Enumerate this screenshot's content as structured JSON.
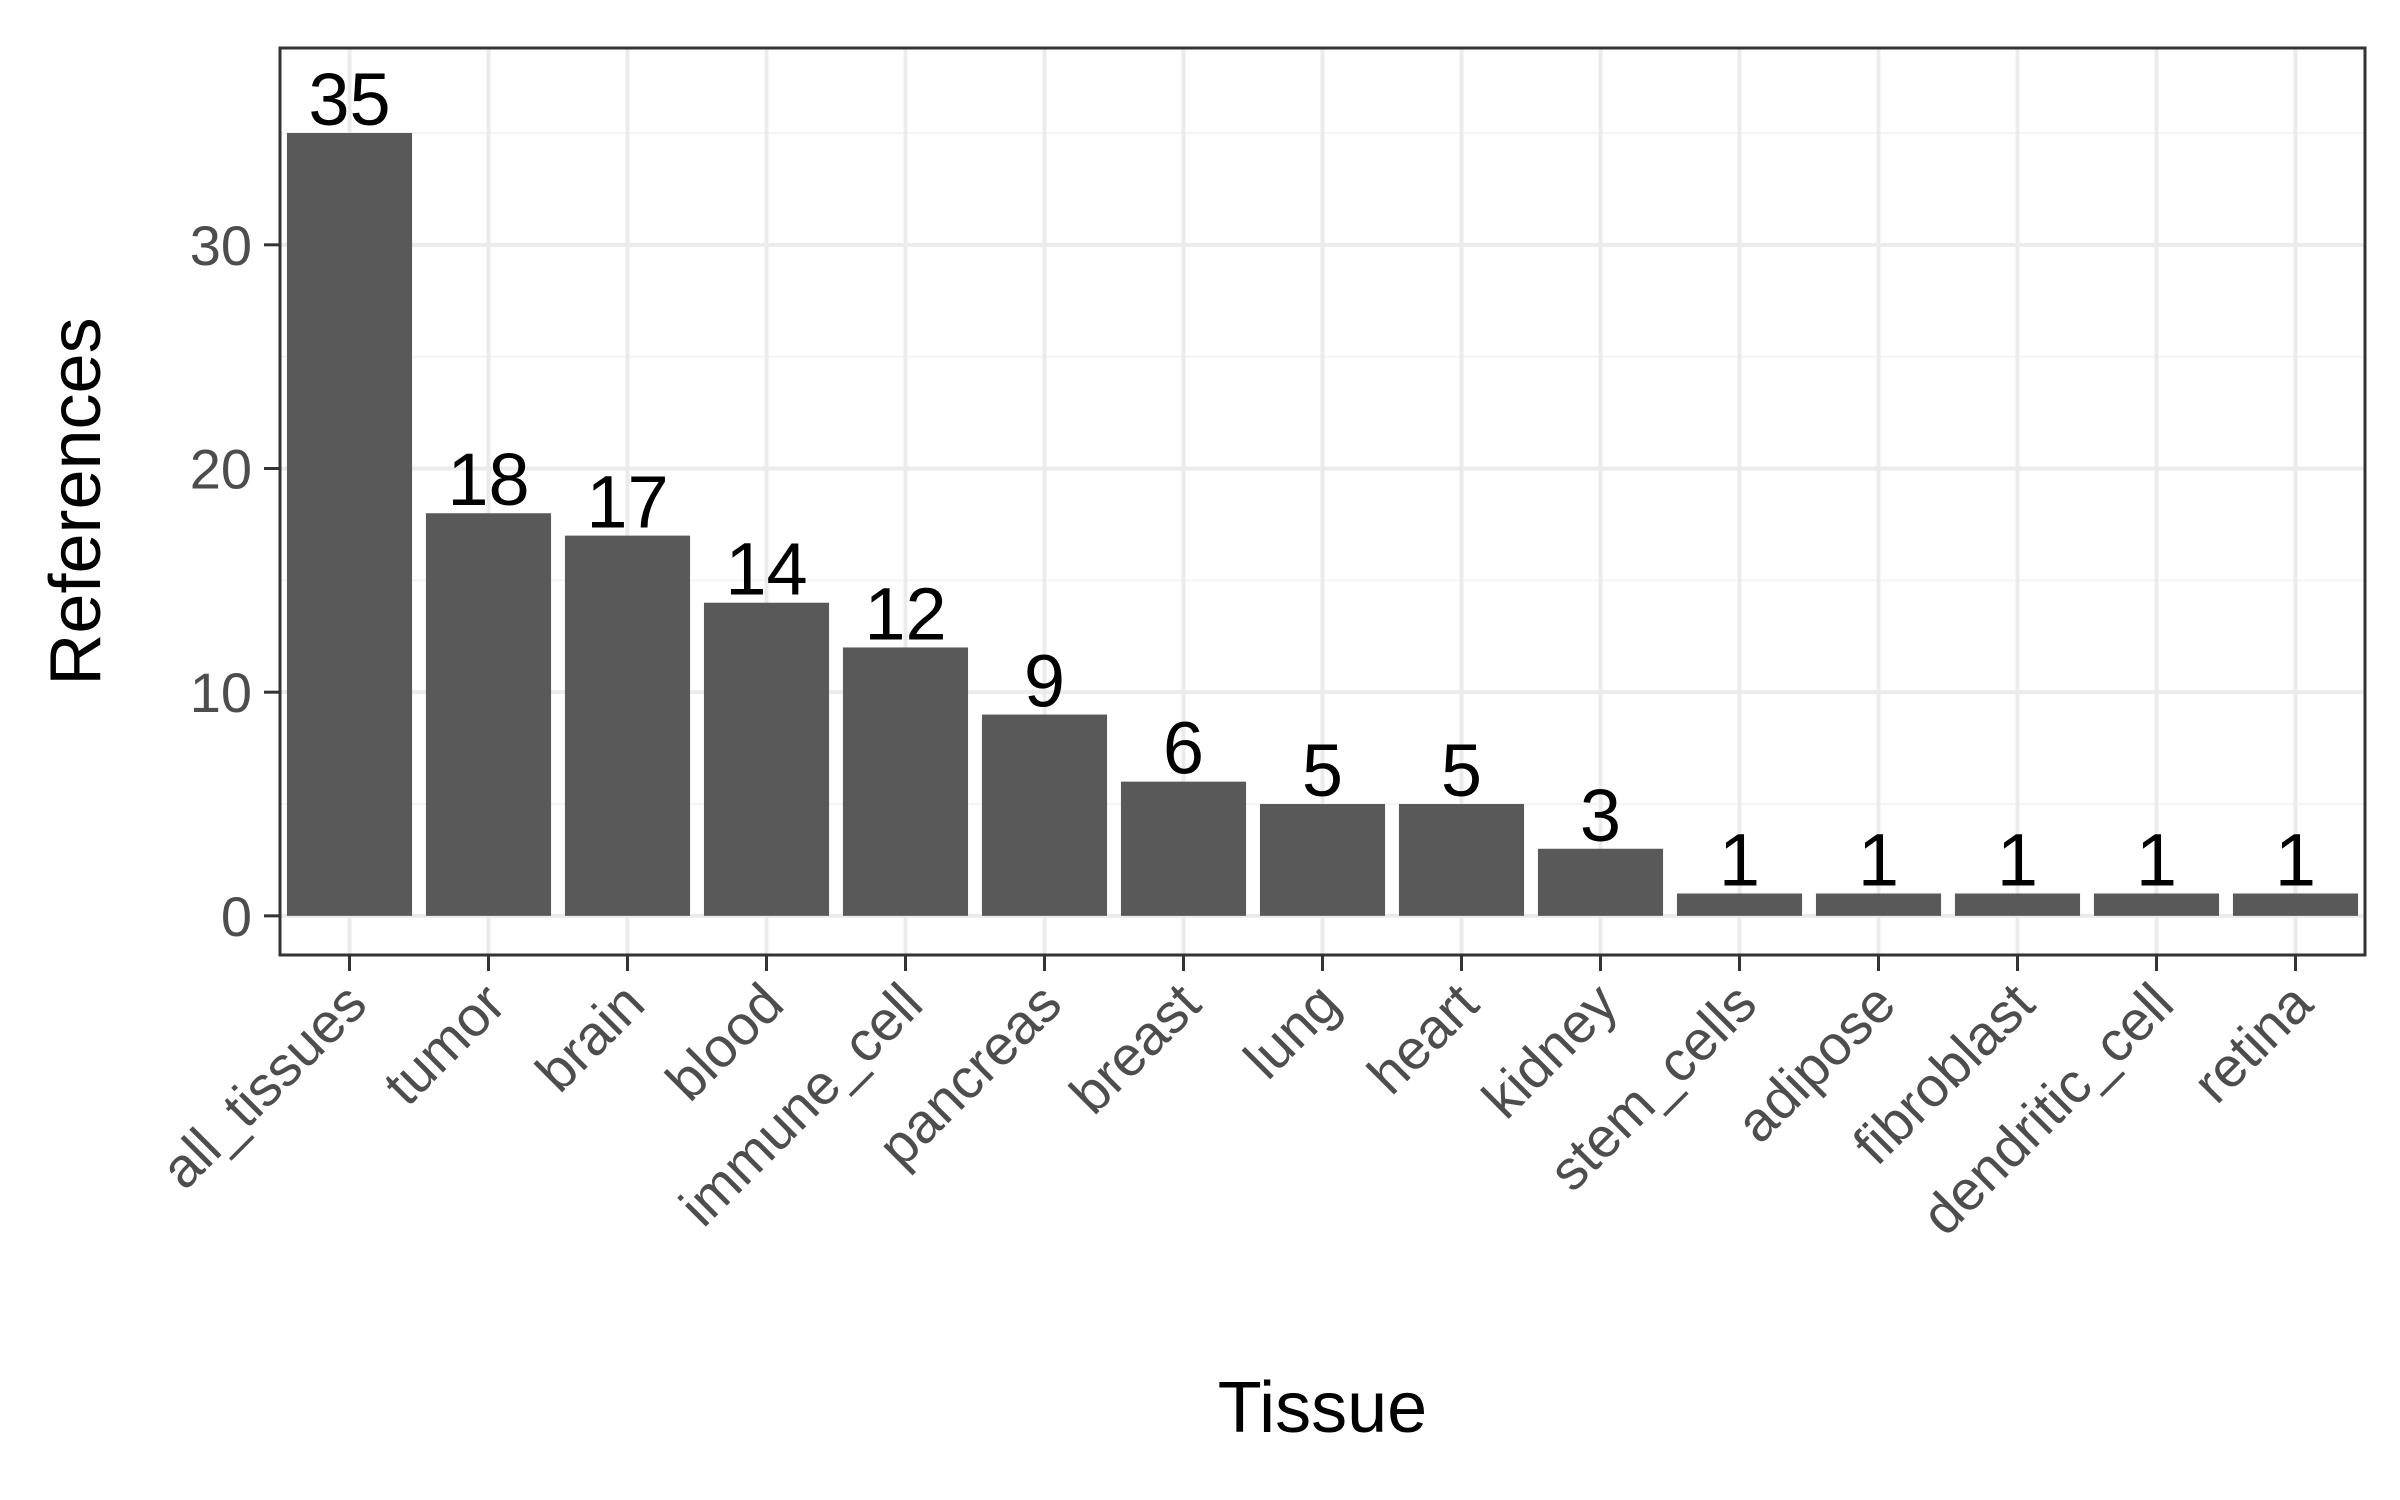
{
  "chart_data": {
    "type": "bar",
    "title": "",
    "xlabel": "Tissue",
    "ylabel": "References",
    "categories": [
      "all_tissues",
      "tumor",
      "brain",
      "blood",
      "immune_cell",
      "pancreas",
      "breast",
      "lung",
      "heart",
      "kidney",
      "stem_cells",
      "adipose",
      "fibroblast",
      "dendritic_cell",
      "retina"
    ],
    "values": [
      35,
      18,
      17,
      14,
      12,
      9,
      6,
      5,
      5,
      3,
      1,
      1,
      1,
      1,
      1
    ],
    "ylim": [
      0,
      40
    ],
    "yticks": [
      0,
      10,
      20,
      30
    ],
    "grid": true,
    "legend": "none",
    "data_labels": true,
    "colors": {
      "bar": "#595959",
      "panel_border": "#333333",
      "grid_major": "#ebebeb",
      "grid_minor": "#f4f4f4",
      "tick_text": "#4d4d4d",
      "axis_title": "#000000"
    }
  }
}
